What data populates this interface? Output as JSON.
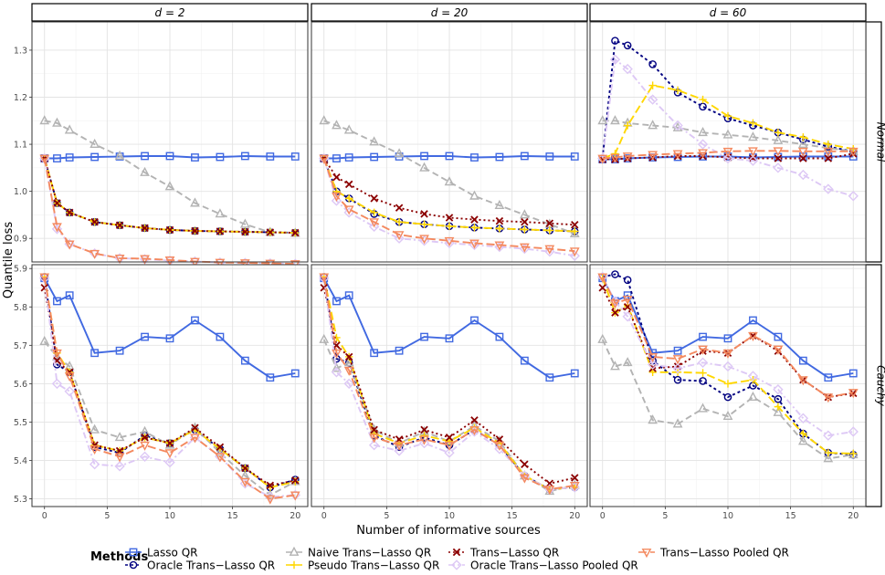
{
  "chart_data": {
    "type": "line",
    "ylabel": "Quantile loss",
    "xlabel": "Number of informative sources",
    "legend_title": "Methods",
    "legend_position": "bottom",
    "columns": [
      "d = 2",
      "d = 20",
      "d = 60"
    ],
    "rows": [
      "Normal",
      "Cauchy"
    ],
    "x": [
      0,
      1,
      2,
      4,
      6,
      8,
      10,
      12,
      14,
      16,
      18,
      20
    ],
    "xticks": [
      0,
      5,
      10,
      15,
      20
    ],
    "xlim": [
      -1,
      21
    ],
    "rows_axes": {
      "Normal": {
        "ylim": [
          0.85,
          1.36
        ],
        "yticks": [
          0.9,
          1.0,
          1.1,
          1.2,
          1.3
        ],
        "ytick_labels": [
          "0.9",
          "1.0",
          "1.1",
          "1.2",
          "1.3"
        ]
      },
      "Cauchy": {
        "ylim": [
          5.28,
          5.91
        ],
        "yticks": [
          5.3,
          5.4,
          5.5,
          5.6,
          5.7,
          5.8,
          5.9
        ],
        "ytick_labels": [
          "5.3",
          "5.4",
          "5.5",
          "5.6",
          "5.7",
          "5.8",
          "5.9"
        ]
      }
    },
    "methods": [
      {
        "name": "Lasso QR",
        "color": "#4169E1",
        "dash": "",
        "marker": "square"
      },
      {
        "name": "Oracle Trans−Lasso QR",
        "color": "#000080",
        "dash": "3 3",
        "marker": "circle"
      },
      {
        "name": "Naive Trans−Lasso QR",
        "color": "#B3B3B3",
        "dash": "7 4",
        "marker": "triangle-up"
      },
      {
        "name": "Pseudo Trans−Lasso QR",
        "color": "#FFD700",
        "dash": "9 4",
        "marker": "plus"
      },
      {
        "name": "Trans−Lasso QR",
        "color": "#8B0000",
        "dash": "2 3",
        "marker": "cross"
      },
      {
        "name": "Oracle Trans−Lasso Pooled QR",
        "color": "#DDC8F5",
        "dash": "7 3 2 3",
        "marker": "diamond"
      },
      {
        "name": "Trans−Lasso Pooled QR",
        "color": "#F4895F",
        "dash": "9 4",
        "marker": "triangle-down"
      }
    ],
    "panels": [
      {
        "row": "Normal",
        "col": "d = 2",
        "series": [
          [
            1.07,
            1.07,
            1.072,
            1.073,
            1.074,
            1.075,
            1.075,
            1.072,
            1.073,
            1.075,
            1.074,
            1.074
          ],
          [
            1.07,
            0.975,
            0.955,
            0.935,
            0.928,
            0.922,
            0.918,
            0.916,
            0.915,
            0.914,
            0.913,
            0.912
          ],
          [
            1.15,
            1.145,
            1.13,
            1.1,
            1.075,
            1.04,
            1.01,
            0.975,
            0.952,
            0.93,
            0.913,
            0.911
          ],
          [
            1.07,
            0.975,
            0.955,
            0.935,
            0.928,
            0.922,
            0.918,
            0.916,
            0.915,
            0.914,
            0.913,
            0.912
          ],
          [
            1.07,
            0.975,
            0.955,
            0.935,
            0.928,
            0.922,
            0.918,
            0.916,
            0.915,
            0.914,
            0.913,
            0.912
          ],
          [
            1.07,
            0.92,
            0.888,
            0.868,
            0.858,
            0.856,
            0.853,
            0.851,
            0.849,
            0.848,
            0.847,
            0.846
          ],
          [
            1.07,
            0.925,
            0.888,
            0.868,
            0.858,
            0.857,
            0.854,
            0.851,
            0.849,
            0.848,
            0.847,
            0.846
          ]
        ]
      },
      {
        "row": "Normal",
        "col": "d = 20",
        "series": [
          [
            1.07,
            1.07,
            1.072,
            1.073,
            1.074,
            1.075,
            1.075,
            1.072,
            1.073,
            1.075,
            1.074,
            1.074
          ],
          [
            1.07,
            1.0,
            0.985,
            0.952,
            0.935,
            0.93,
            0.926,
            0.923,
            0.921,
            0.919,
            0.917,
            0.915
          ],
          [
            1.15,
            1.14,
            1.13,
            1.105,
            1.08,
            1.05,
            1.02,
            0.99,
            0.97,
            0.95,
            0.93,
            0.91
          ],
          [
            1.07,
            1.0,
            0.985,
            0.955,
            0.935,
            0.93,
            0.926,
            0.923,
            0.921,
            0.919,
            0.917,
            0.915
          ],
          [
            1.07,
            1.03,
            1.015,
            0.985,
            0.965,
            0.952,
            0.944,
            0.94,
            0.937,
            0.935,
            0.932,
            0.929
          ],
          [
            1.07,
            0.98,
            0.955,
            0.925,
            0.9,
            0.895,
            0.89,
            0.886,
            0.882,
            0.878,
            0.872,
            0.863
          ],
          [
            1.07,
            0.99,
            0.962,
            0.935,
            0.908,
            0.9,
            0.895,
            0.89,
            0.886,
            0.882,
            0.878,
            0.873
          ]
        ]
      },
      {
        "row": "Normal",
        "col": "d = 60",
        "series": [
          [
            1.068,
            1.068,
            1.07,
            1.072,
            1.073,
            1.074,
            1.074,
            1.072,
            1.073,
            1.074,
            1.074,
            1.074
          ],
          [
            1.07,
            1.32,
            1.31,
            1.27,
            1.21,
            1.18,
            1.155,
            1.14,
            1.125,
            1.11,
            1.095,
            1.085
          ],
          [
            1.15,
            1.15,
            1.145,
            1.14,
            1.135,
            1.125,
            1.12,
            1.115,
            1.108,
            1.1,
            1.092,
            1.085
          ],
          [
            1.07,
            1.08,
            1.14,
            1.225,
            1.215,
            1.195,
            1.16,
            1.145,
            1.125,
            1.115,
            1.1,
            1.09
          ],
          [
            1.068,
            1.068,
            1.07,
            1.072,
            1.075,
            1.075,
            1.072,
            1.07,
            1.07,
            1.07,
            1.07,
            1.08
          ],
          [
            1.07,
            1.28,
            1.26,
            1.195,
            1.14,
            1.1,
            1.07,
            1.065,
            1.05,
            1.035,
            1.005,
            0.99
          ],
          [
            1.07,
            1.072,
            1.075,
            1.078,
            1.08,
            1.082,
            1.085,
            1.086,
            1.086,
            1.085,
            1.085,
            1.085
          ]
        ]
      },
      {
        "row": "Cauchy",
        "col": "d = 2",
        "series": [
          [
            5.875,
            5.815,
            5.83,
            5.68,
            5.686,
            5.722,
            5.718,
            5.765,
            5.722,
            5.66,
            5.616,
            5.627
          ],
          [
            5.878,
            5.65,
            5.63,
            5.435,
            5.42,
            5.465,
            5.445,
            5.48,
            5.43,
            5.38,
            5.33,
            5.35
          ],
          [
            5.71,
            5.67,
            5.645,
            5.48,
            5.46,
            5.475,
            5.44,
            5.485,
            5.42,
            5.36,
            5.31,
            5.345
          ],
          [
            5.878,
            5.68,
            5.63,
            5.44,
            5.425,
            5.46,
            5.445,
            5.48,
            5.43,
            5.38,
            5.33,
            5.345
          ],
          [
            5.85,
            5.66,
            5.63,
            5.44,
            5.425,
            5.46,
            5.445,
            5.485,
            5.435,
            5.38,
            5.335,
            5.348
          ],
          [
            5.875,
            5.6,
            5.58,
            5.39,
            5.385,
            5.41,
            5.395,
            5.46,
            5.41,
            5.34,
            5.305,
            5.31
          ],
          [
            5.878,
            5.68,
            5.62,
            5.43,
            5.41,
            5.44,
            5.42,
            5.46,
            5.41,
            5.345,
            5.3,
            5.31
          ]
        ]
      },
      {
        "row": "Cauchy",
        "col": "d = 20",
        "series": [
          [
            5.875,
            5.815,
            5.83,
            5.68,
            5.686,
            5.722,
            5.718,
            5.765,
            5.722,
            5.66,
            5.616,
            5.627
          ],
          [
            5.878,
            5.665,
            5.655,
            5.465,
            5.435,
            5.46,
            5.44,
            5.48,
            5.44,
            5.36,
            5.325,
            5.33
          ],
          [
            5.715,
            5.64,
            5.655,
            5.48,
            5.445,
            5.475,
            5.45,
            5.49,
            5.45,
            5.36,
            5.32,
            5.335
          ],
          [
            5.878,
            5.72,
            5.67,
            5.47,
            5.445,
            5.465,
            5.45,
            5.485,
            5.445,
            5.36,
            5.325,
            5.33
          ],
          [
            5.85,
            5.7,
            5.67,
            5.48,
            5.455,
            5.48,
            5.46,
            5.505,
            5.455,
            5.39,
            5.34,
            5.355
          ],
          [
            5.875,
            5.63,
            5.6,
            5.44,
            5.425,
            5.445,
            5.42,
            5.475,
            5.43,
            5.36,
            5.325,
            5.33
          ],
          [
            5.878,
            5.68,
            5.635,
            5.46,
            5.44,
            5.455,
            5.44,
            5.48,
            5.44,
            5.355,
            5.325,
            5.335
          ]
        ]
      },
      {
        "row": "Cauchy",
        "col": "d = 60",
        "series": [
          [
            5.875,
            5.815,
            5.83,
            5.68,
            5.686,
            5.722,
            5.718,
            5.765,
            5.722,
            5.66,
            5.616,
            5.627
          ],
          [
            5.878,
            5.885,
            5.87,
            5.66,
            5.61,
            5.607,
            5.565,
            5.595,
            5.56,
            5.47,
            5.42,
            5.415
          ],
          [
            5.715,
            5.645,
            5.655,
            5.505,
            5.495,
            5.535,
            5.515,
            5.565,
            5.525,
            5.45,
            5.405,
            5.415
          ],
          [
            5.875,
            5.785,
            5.805,
            5.63,
            5.63,
            5.628,
            5.6,
            5.61,
            5.54,
            5.47,
            5.42,
            5.418
          ],
          [
            5.85,
            5.785,
            5.8,
            5.64,
            5.645,
            5.685,
            5.68,
            5.725,
            5.685,
            5.61,
            5.565,
            5.575
          ],
          [
            5.878,
            5.815,
            5.775,
            5.65,
            5.64,
            5.655,
            5.645,
            5.62,
            5.585,
            5.51,
            5.465,
            5.475
          ],
          [
            5.878,
            5.81,
            5.82,
            5.67,
            5.665,
            5.69,
            5.68,
            5.725,
            5.69,
            5.61,
            5.565,
            5.577
          ]
        ]
      }
    ]
  }
}
